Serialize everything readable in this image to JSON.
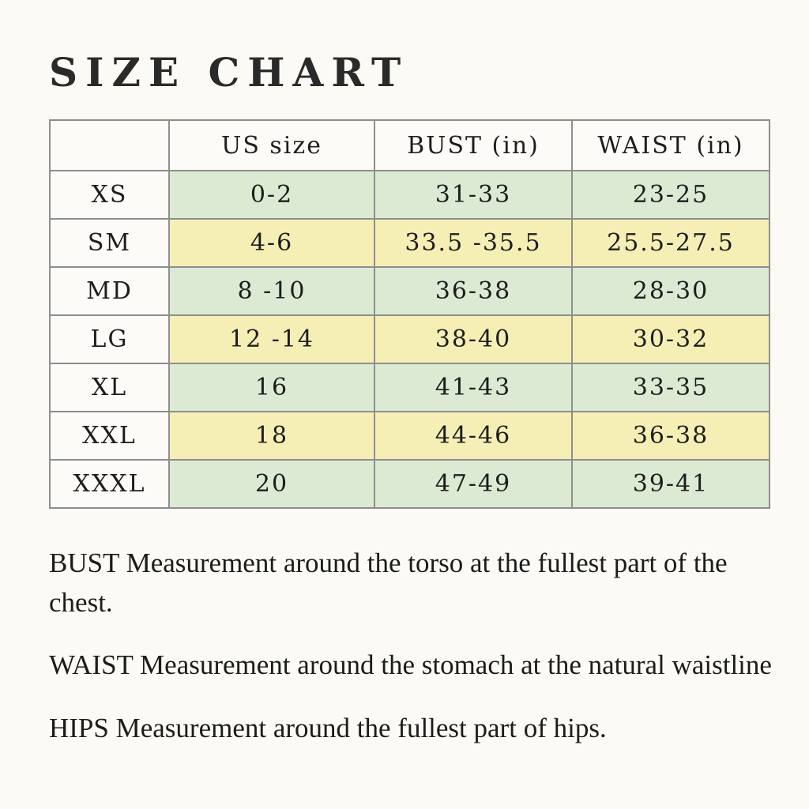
{
  "title": "SIZE CHART",
  "table": {
    "headers": [
      "US size",
      "BUST (in)",
      "WAIST (in)"
    ],
    "rows": [
      {
        "size": "XS",
        "us_size": "0-2",
        "bust": "31-33",
        "waist": "23-25",
        "highlight": "green"
      },
      {
        "size": "SM",
        "us_size": "4-6",
        "bust": "33.5 -35.5",
        "waist": "25.5-27.5",
        "highlight": "yellow"
      },
      {
        "size": "MD",
        "us_size": "8 -10",
        "bust": "36-38",
        "waist": "28-30",
        "highlight": "green"
      },
      {
        "size": "LG",
        "us_size": "12 -14",
        "bust": "38-40",
        "waist": "30-32",
        "highlight": "yellow"
      },
      {
        "size": "XL",
        "us_size": "16",
        "bust": "41-43",
        "waist": "33-35",
        "highlight": "green"
      },
      {
        "size": "XXL",
        "us_size": "18",
        "bust": "44-46",
        "waist": "36-38",
        "highlight": "yellow"
      },
      {
        "size": "XXXL",
        "us_size": "20",
        "bust": "47-49",
        "waist": "39-41",
        "highlight": "green"
      }
    ],
    "colors": {
      "green": "#dcead3",
      "yellow": "#f6efb5",
      "cell_white": "#fcfbf7",
      "border": "#8e8e8e",
      "page_background": "#fcfaf4"
    }
  },
  "notes": [
    "BUST Measurement around the torso at the fullest part of the chest.",
    "WAIST Measurement around the stomach at the natural waistline",
    "HIPS Measurement around the fullest part of hips."
  ]
}
